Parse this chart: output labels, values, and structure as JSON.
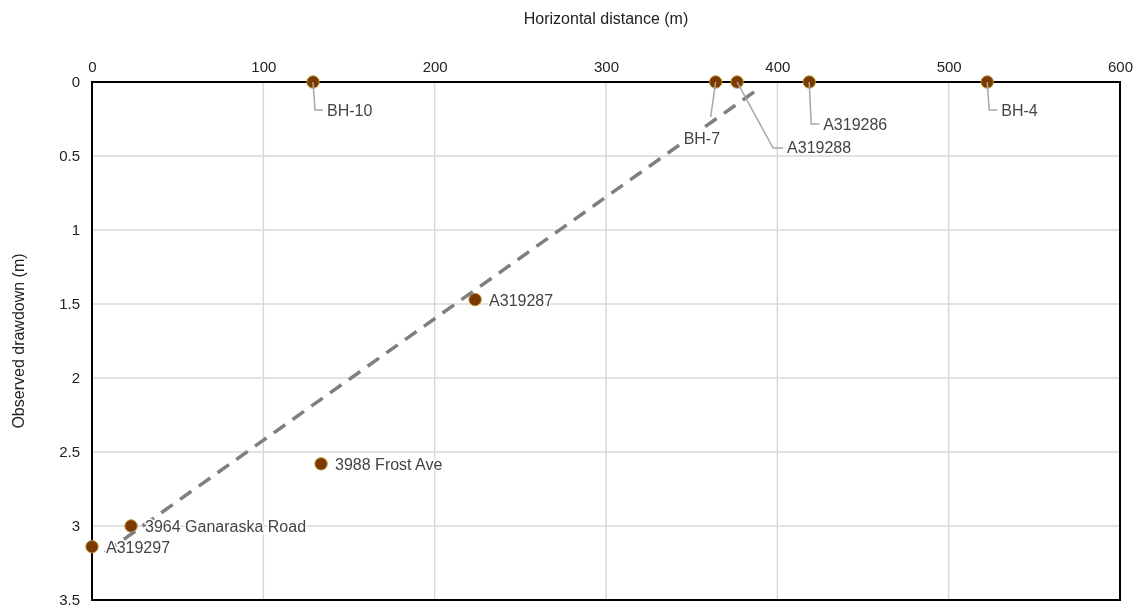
{
  "chart_data": {
    "type": "scatter",
    "xlabel": "Horizontal distance (m)",
    "ylabel": "Observed drawdown (m)",
    "xlim": [
      0,
      600
    ],
    "xticks": [
      0,
      100,
      200,
      300,
      400,
      500,
      600
    ],
    "ylim": [
      3.5,
      0
    ],
    "yticks": [
      0,
      0.5,
      1,
      1.5,
      2,
      2.5,
      3,
      3.5
    ],
    "grid": true,
    "marker": "circle",
    "series": [
      {
        "type": "scatter",
        "color": "#7b3b00",
        "x": [
          129,
          364,
          376.5,
          418.6,
          522.5,
          223.6,
          133.7,
          22.8,
          0
        ],
        "values": [
          0,
          0,
          0,
          0,
          0,
          1.47,
          2.58,
          3.0,
          3.14
        ]
      },
      {
        "type": "line",
        "color": "#7f7f7f",
        "line_style": "dashed",
        "marker": "none",
        "x": [
          7.6,
          388.5
        ],
        "values": [
          3.18,
          0.05
        ]
      }
    ],
    "annotations": [
      {
        "text": "BH-10",
        "x": 129,
        "y": 0
      },
      {
        "text": "BH-7",
        "x": 364,
        "y": 0
      },
      {
        "text": "A319288",
        "x": 376.5,
        "y": 0
      },
      {
        "text": "A319286",
        "x": 418.6,
        "y": 0
      },
      {
        "text": "BH-4",
        "x": 522.5,
        "y": 0
      },
      {
        "text": "A319287",
        "x": 223.6,
        "y": 1.47
      },
      {
        "text": "3988 Frost Ave",
        "x": 133.7,
        "y": 2.58
      },
      {
        "text": "3964 Ganaraska Road",
        "x": 22.8,
        "y": 3.0
      },
      {
        "text": "A319297",
        "x": 0,
        "y": 3.14
      }
    ]
  }
}
